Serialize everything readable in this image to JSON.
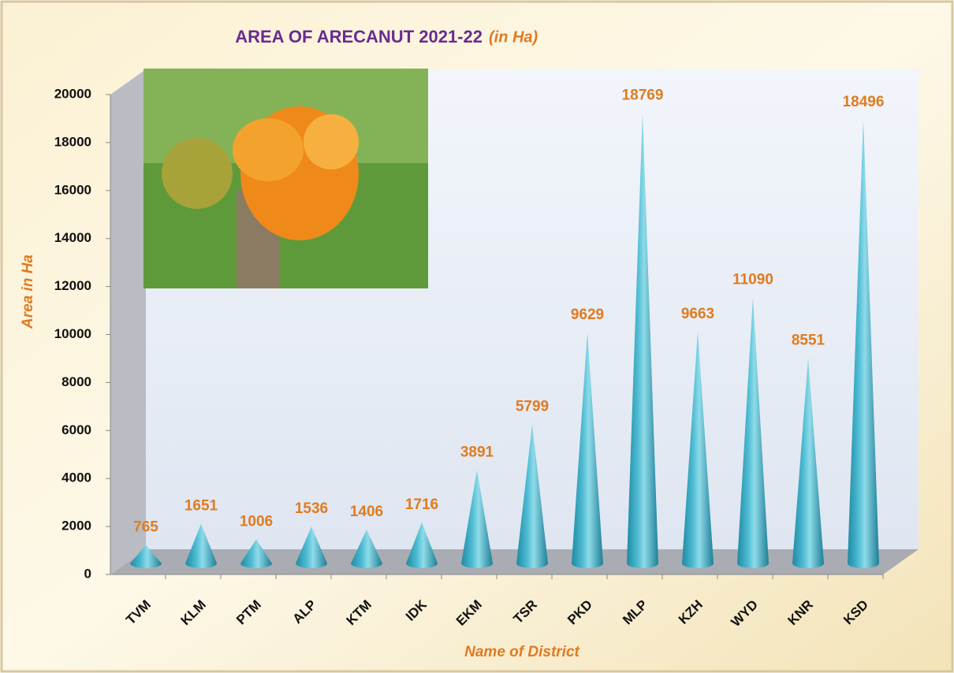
{
  "chart_data": {
    "type": "cone-bar",
    "title": "AREA OF ARECANUT  2021-22",
    "subtitle": "(in Ha)",
    "y_label": "Area in Ha",
    "x_label": "Name of District",
    "categories": [
      "TVM",
      "KLM",
      "PTM",
      "ALP",
      "KTM",
      "IDK",
      "EKM",
      "TSR",
      "PKD",
      "MLP",
      "KZH",
      "WYD",
      "KNR",
      "KSD"
    ],
    "values": [
      765,
      1651,
      1006,
      1536,
      1406,
      1716,
      3891,
      5799,
      9629,
      18769,
      9663,
      11090,
      8551,
      18496
    ],
    "color": "#2fa4bd",
    "ylim": [
      0,
      20000
    ],
    "yticks": [
      0,
      2000,
      4000,
      6000,
      8000,
      10000,
      12000,
      14000,
      16000,
      18000,
      20000
    ]
  }
}
